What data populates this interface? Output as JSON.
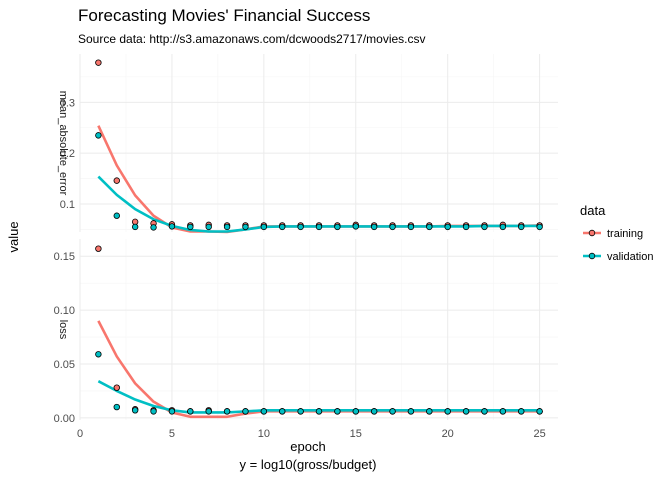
{
  "chart_data": {
    "type": "scatter",
    "title": "Forecasting Movies' Financial Success",
    "subtitle": "Source data: http://s3.amazonaws.com/dcwoods2717/movies.csv",
    "xlabel": "epoch",
    "xlabel2": "y = log10(gross/budget)",
    "ylabel": "value",
    "grid": true,
    "legend": {
      "title": "data",
      "position": "right",
      "entries": [
        "training",
        "validation"
      ]
    },
    "colors": {
      "training": "#F8766D",
      "validation": "#00BFC4"
    },
    "x": [
      1,
      2,
      3,
      4,
      5,
      6,
      7,
      8,
      9,
      10,
      11,
      12,
      13,
      14,
      15,
      16,
      17,
      18,
      19,
      20,
      21,
      22,
      23,
      24,
      25
    ],
    "xlim": [
      0,
      26
    ],
    "xticks": [
      0,
      5,
      10,
      15,
      20,
      25
    ],
    "panels": [
      {
        "label": "mean_absolute_error",
        "ylim": [
          0.045,
          0.395
        ],
        "yticks": [
          0.1,
          0.2,
          0.3
        ],
        "yticklabels": [
          "0.1",
          "0.2",
          "0.3"
        ],
        "series": [
          {
            "name": "training",
            "values": [
              0.378,
              0.146,
              0.065,
              0.062,
              0.06,
              0.058,
              0.059,
              0.058,
              0.058,
              0.058,
              0.058,
              0.058,
              0.058,
              0.058,
              0.059,
              0.058,
              0.058,
              0.058,
              0.058,
              0.058,
              0.058,
              0.058,
              0.059,
              0.058,
              0.058
            ],
            "smooth": [
              0.254,
              0.176,
              0.117,
              0.077,
              0.054,
              0.046,
              0.046,
              0.045,
              0.05,
              0.056,
              0.056,
              0.056,
              0.056,
              0.056,
              0.056,
              0.056,
              0.056,
              0.056,
              0.056,
              0.057,
              0.057,
              0.057,
              0.057,
              0.057,
              0.058
            ]
          },
          {
            "name": "validation",
            "values": [
              0.235,
              0.077,
              0.055,
              0.054,
              0.056,
              0.055,
              0.055,
              0.055,
              0.055,
              0.055,
              0.055,
              0.055,
              0.055,
              0.055,
              0.056,
              0.055,
              0.055,
              0.055,
              0.055,
              0.055,
              0.055,
              0.055,
              0.055,
              0.055,
              0.055
            ],
            "smooth": [
              0.154,
              0.118,
              0.09,
              0.07,
              0.057,
              0.049,
              0.046,
              0.046,
              0.05,
              0.055,
              0.056,
              0.056,
              0.056,
              0.056,
              0.056,
              0.056,
              0.056,
              0.056,
              0.056,
              0.056,
              0.056,
              0.057,
              0.057,
              0.057,
              0.057
            ]
          }
        ]
      },
      {
        "label": "loss",
        "ylim": [
          -0.002,
          0.166
        ],
        "yticks": [
          0.0,
          0.05,
          0.1,
          0.15
        ],
        "yticklabels": [
          "0.00",
          "0.05",
          "0.10",
          "0.15"
        ],
        "series": [
          {
            "name": "training",
            "values": [
              0.157,
              0.028,
              0.008,
              0.007,
              0.007,
              0.006,
              0.007,
              0.006,
              0.006,
              0.006,
              0.006,
              0.006,
              0.006,
              0.006,
              0.006,
              0.006,
              0.006,
              0.006,
              0.006,
              0.006,
              0.006,
              0.006,
              0.006,
              0.006,
              0.006
            ],
            "smooth": [
              0.09,
              0.057,
              0.032,
              0.015,
              0.005,
              0.001,
              0.001,
              0.001,
              0.004,
              0.006,
              0.006,
              0.006,
              0.006,
              0.006,
              0.006,
              0.006,
              0.006,
              0.006,
              0.006,
              0.006,
              0.006,
              0.006,
              0.006,
              0.006,
              0.006
            ]
          },
          {
            "name": "validation",
            "values": [
              0.059,
              0.01,
              0.007,
              0.006,
              0.006,
              0.006,
              0.006,
              0.006,
              0.006,
              0.006,
              0.006,
              0.006,
              0.006,
              0.006,
              0.006,
              0.006,
              0.006,
              0.006,
              0.006,
              0.006,
              0.006,
              0.006,
              0.006,
              0.006,
              0.006
            ],
            "smooth": [
              0.034,
              0.025,
              0.017,
              0.011,
              0.007,
              0.005,
              0.005,
              0.005,
              0.006,
              0.007,
              0.007,
              0.007,
              0.007,
              0.007,
              0.007,
              0.007,
              0.007,
              0.007,
              0.007,
              0.007,
              0.007,
              0.007,
              0.007,
              0.007,
              0.007
            ]
          }
        ]
      }
    ]
  }
}
